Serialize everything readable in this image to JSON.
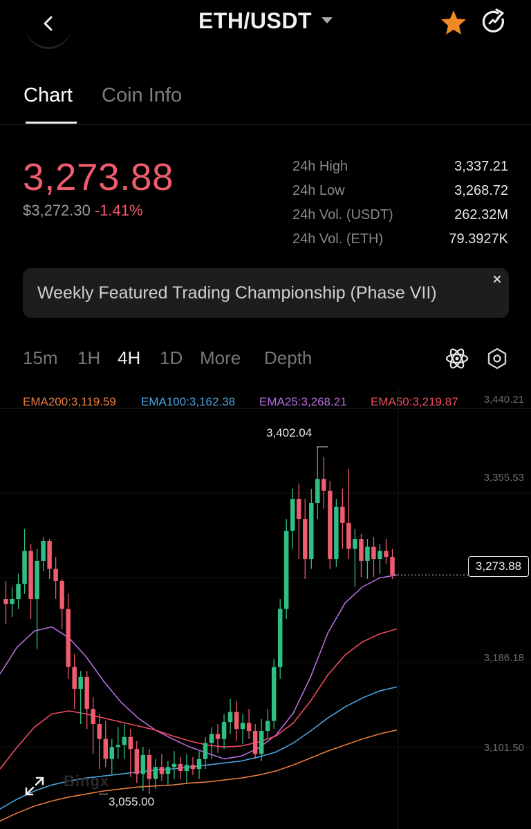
{
  "header": {
    "title": "ETH/USDT",
    "colors": {
      "star": "#f08a24"
    },
    "icons": {
      "back": "chevron-left-icon",
      "caret": "caret-down-icon",
      "favorite": "star-icon",
      "refresh": "refresh-icon"
    }
  },
  "tabs": [
    {
      "label": "Chart",
      "active": true
    },
    {
      "label": "Coin Info",
      "active": false
    }
  ],
  "ticker": {
    "last_price": "3,273.88",
    "usd_price": "$3,272.30",
    "change": "-1.41%",
    "colors": {
      "down": "#ee5c6e"
    },
    "stats": [
      {
        "label": "24h High",
        "value": "3,337.21"
      },
      {
        "label": "24h Low",
        "value": "3,268.72"
      },
      {
        "label": "24h Vol. (USDT)",
        "value": "262.32M"
      },
      {
        "label": "24h Vol. (ETH)",
        "value": "79.3927K"
      }
    ]
  },
  "banner": {
    "text": "Weekly Featured Trading Championship (Phase VII)",
    "close_icon": "close-icon"
  },
  "intervals": {
    "items": [
      {
        "label": "15m",
        "active": false
      },
      {
        "label": "1H",
        "active": false
      },
      {
        "label": "4H",
        "active": true
      },
      {
        "label": "1D",
        "active": false
      },
      {
        "label": "More",
        "active": false
      },
      {
        "label": "Depth",
        "active": false
      }
    ],
    "icons": {
      "indicators": "atom-icon",
      "settings": "gear-icon"
    }
  },
  "ema": [
    {
      "label": "EMA200:3,119.59",
      "color": "#e97c3c"
    },
    {
      "label": "EMA100:3,162.38",
      "color": "#4aa3df"
    },
    {
      "label": "EMA25:3,268.21",
      "color": "#b86ee0"
    },
    {
      "label": "EMA50:3,219.87",
      "color": "#f04a5e"
    }
  ],
  "chart_data": {
    "type": "candlestick",
    "interval": "4H",
    "y_axis_labels": [
      "3,440.21",
      "3,355.53",
      "3,186.18",
      "3,101.50"
    ],
    "ylim": [
      3020,
      3462
    ],
    "current_price": "3,273.88",
    "annotations": {
      "high": "3,402.04",
      "low": "3,055.00"
    },
    "colors": {
      "up": "#2fbf84",
      "down": "#ee5c6e"
    },
    "candles": [
      [
        3250,
        3268,
        3225,
        3245
      ],
      [
        3245,
        3262,
        3232,
        3250
      ],
      [
        3250,
        3275,
        3240,
        3265
      ],
      [
        3265,
        3320,
        3255,
        3298
      ],
      [
        3298,
        3305,
        3230,
        3250
      ],
      [
        3250,
        3300,
        3200,
        3288
      ],
      [
        3288,
        3312,
        3278,
        3308
      ],
      [
        3308,
        3310,
        3270,
        3280
      ],
      [
        3280,
        3292,
        3250,
        3268
      ],
      [
        3268,
        3270,
        3220,
        3240
      ],
      [
        3240,
        3255,
        3170,
        3182
      ],
      [
        3182,
        3195,
        3140,
        3160
      ],
      [
        3160,
        3178,
        3125,
        3172
      ],
      [
        3172,
        3178,
        3120,
        3140
      ],
      [
        3140,
        3152,
        3095,
        3125
      ],
      [
        3125,
        3135,
        3080,
        3110
      ],
      [
        3110,
        3128,
        3082,
        3090
      ],
      [
        3090,
        3110,
        3075,
        3102
      ],
      [
        3102,
        3122,
        3090,
        3104
      ],
      [
        3104,
        3125,
        3090,
        3112
      ],
      [
        3112,
        3120,
        3072,
        3100
      ],
      [
        3100,
        3108,
        3066,
        3075
      ],
      [
        3075,
        3102,
        3058,
        3094
      ],
      [
        3094,
        3100,
        3055,
        3070
      ],
      [
        3070,
        3090,
        3060,
        3082
      ],
      [
        3082,
        3095,
        3068,
        3075
      ],
      [
        3075,
        3088,
        3064,
        3082
      ],
      [
        3082,
        3098,
        3070,
        3085
      ],
      [
        3085,
        3092,
        3070,
        3078
      ],
      [
        3078,
        3095,
        3066,
        3084
      ],
      [
        3084,
        3092,
        3074,
        3080
      ],
      [
        3080,
        3098,
        3070,
        3090
      ],
      [
        3090,
        3112,
        3080,
        3106
      ],
      [
        3106,
        3122,
        3090,
        3115
      ],
      [
        3115,
        3125,
        3096,
        3110
      ],
      [
        3110,
        3135,
        3100,
        3127
      ],
      [
        3127,
        3150,
        3115,
        3137
      ],
      [
        3137,
        3148,
        3108,
        3120
      ],
      [
        3120,
        3135,
        3105,
        3126
      ],
      [
        3126,
        3140,
        3110,
        3118
      ],
      [
        3118,
        3125,
        3090,
        3095
      ],
      [
        3095,
        3130,
        3088,
        3118
      ],
      [
        3118,
        3140,
        3110,
        3128
      ],
      [
        3128,
        3190,
        3120,
        3182
      ],
      [
        3182,
        3250,
        3170,
        3240
      ],
      [
        3240,
        3330,
        3230,
        3318
      ],
      [
        3318,
        3360,
        3300,
        3350
      ],
      [
        3350,
        3365,
        3290,
        3330
      ],
      [
        3330,
        3350,
        3270,
        3290
      ],
      [
        3290,
        3360,
        3280,
        3346
      ],
      [
        3346,
        3402,
        3330,
        3370
      ],
      [
        3370,
        3392,
        3340,
        3358
      ],
      [
        3358,
        3368,
        3280,
        3290
      ],
      [
        3290,
        3350,
        3282,
        3342
      ],
      [
        3342,
        3360,
        3300,
        3326
      ],
      [
        3326,
        3380,
        3290,
        3300
      ],
      [
        3300,
        3320,
        3262,
        3310
      ],
      [
        3310,
        3315,
        3272,
        3288
      ],
      [
        3288,
        3310,
        3270,
        3302
      ],
      [
        3302,
        3312,
        3272,
        3290
      ],
      [
        3290,
        3305,
        3275,
        3298
      ],
      [
        3298,
        3310,
        3285,
        3292
      ],
      [
        3292,
        3300,
        3270,
        3274
      ]
    ],
    "series": [
      {
        "name": "EMA25",
        "color": "#b86ee0",
        "values": [
          3175,
          3202,
          3218,
          3222,
          3211,
          3192,
          3168,
          3147,
          3131,
          3119,
          3110,
          3102,
          3096,
          3090,
          3093,
          3101,
          3114,
          3136,
          3172,
          3216,
          3246,
          3262,
          3271,
          3274
        ]
      },
      {
        "name": "EMA50",
        "color": "#f04a5e",
        "values": [
          3080,
          3102,
          3122,
          3135,
          3138,
          3135,
          3131,
          3127,
          3123,
          3119,
          3113,
          3108,
          3104,
          3102,
          3103,
          3107,
          3113,
          3126,
          3148,
          3174,
          3194,
          3207,
          3215,
          3220
        ]
      },
      {
        "name": "EMA100",
        "color": "#4aa3df",
        "values": [
          3040,
          3050,
          3058,
          3064,
          3068,
          3071,
          3073,
          3075,
          3077,
          3079,
          3080,
          3082,
          3084,
          3086,
          3088,
          3092,
          3097,
          3106,
          3118,
          3131,
          3142,
          3151,
          3158,
          3162
        ]
      },
      {
        "name": "EMA200",
        "color": "#e97c3c",
        "values": [
          3028,
          3036,
          3043,
          3048,
          3052,
          3055,
          3058,
          3060,
          3062,
          3063,
          3064,
          3066,
          3067,
          3069,
          3071,
          3074,
          3078,
          3084,
          3091,
          3098,
          3104,
          3110,
          3115,
          3119
        ]
      }
    ]
  }
}
